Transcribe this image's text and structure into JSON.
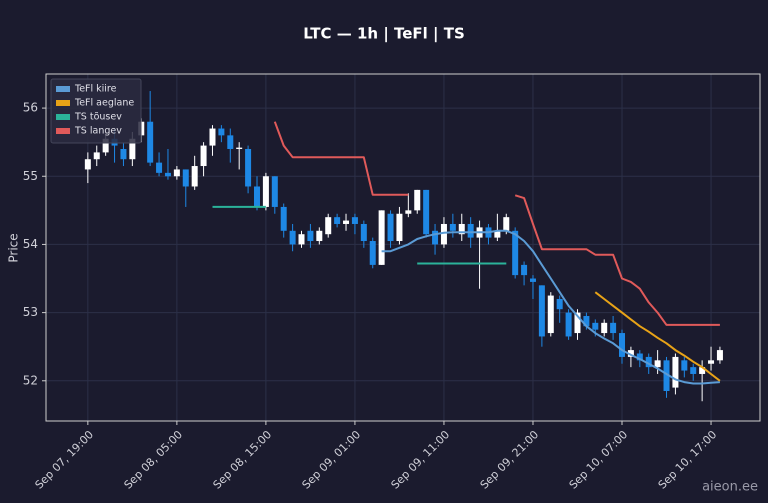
{
  "chart_data": {
    "type": "candlestick",
    "title": "LTC — 1h  |  TeFl  |  TS",
    "ylabel": "Price",
    "watermark": "aieon.ee",
    "x": [
      "Sep 07, 19:00",
      "Sep 07, 20:00",
      "Sep 07, 21:00",
      "Sep 07, 22:00",
      "Sep 07, 23:00",
      "Sep 08, 00:00",
      "Sep 08, 01:00",
      "Sep 08, 02:00",
      "Sep 08, 03:00",
      "Sep 08, 04:00",
      "Sep 08, 05:00",
      "Sep 08, 06:00",
      "Sep 08, 07:00",
      "Sep 08, 08:00",
      "Sep 08, 09:00",
      "Sep 08, 10:00",
      "Sep 08, 11:00",
      "Sep 08, 12:00",
      "Sep 08, 13:00",
      "Sep 08, 14:00",
      "Sep 08, 15:00",
      "Sep 08, 16:00",
      "Sep 08, 17:00",
      "Sep 08, 18:00",
      "Sep 08, 19:00",
      "Sep 08, 20:00",
      "Sep 08, 21:00",
      "Sep 08, 22:00",
      "Sep 08, 23:00",
      "Sep 09, 00:00",
      "Sep 09, 01:00",
      "Sep 09, 02:00",
      "Sep 09, 03:00",
      "Sep 09, 04:00",
      "Sep 09, 05:00",
      "Sep 09, 06:00",
      "Sep 09, 07:00",
      "Sep 09, 08:00",
      "Sep 09, 09:00",
      "Sep 09, 10:00",
      "Sep 09, 11:00",
      "Sep 09, 12:00",
      "Sep 09, 13:00",
      "Sep 09, 14:00",
      "Sep 09, 15:00",
      "Sep 09, 16:00",
      "Sep 09, 17:00",
      "Sep 09, 18:00",
      "Sep 09, 19:00",
      "Sep 09, 20:00",
      "Sep 09, 21:00",
      "Sep 09, 22:00",
      "Sep 09, 23:00",
      "Sep 10, 00:00",
      "Sep 10, 01:00",
      "Sep 10, 02:00",
      "Sep 10, 03:00",
      "Sep 10, 04:00",
      "Sep 10, 05:00",
      "Sep 10, 06:00",
      "Sep 10, 07:00",
      "Sep 10, 08:00",
      "Sep 10, 09:00",
      "Sep 10, 10:00",
      "Sep 10, 11:00",
      "Sep 10, 12:00",
      "Sep 10, 13:00",
      "Sep 10, 14:00",
      "Sep 10, 15:00",
      "Sep 10, 16:00",
      "Sep 10, 17:00",
      "Sep 10, 18:00"
    ],
    "open": [
      55.1,
      55.25,
      55.35,
      55.55,
      55.4,
      55.25,
      55.6,
      55.8,
      55.2,
      55.05,
      55.0,
      55.1,
      54.85,
      55.15,
      55.45,
      55.7,
      55.6,
      55.4,
      55.4,
      54.85,
      54.55,
      55.0,
      54.55,
      54.2,
      54.0,
      54.2,
      54.05,
      54.15,
      54.4,
      54.3,
      54.4,
      54.3,
      54.05,
      53.7,
      54.45,
      54.05,
      54.45,
      54.5,
      54.8,
      54.2,
      54.0,
      54.3,
      54.15,
      54.3,
      54.1,
      54.25,
      54.1,
      54.2,
      54.2,
      53.7,
      53.5,
      53.4,
      52.7,
      53.2,
      53.0,
      52.7,
      52.95,
      52.85,
      52.7,
      52.85,
      52.7,
      52.35,
      52.4,
      52.35,
      52.2,
      52.3,
      51.9,
      52.3,
      52.2,
      52.1,
      52.25,
      52.3
    ],
    "high": [
      55.35,
      55.45,
      55.65,
      55.7,
      55.5,
      55.65,
      55.85,
      56.25,
      55.35,
      55.4,
      55.15,
      55.1,
      55.3,
      55.5,
      55.75,
      55.75,
      55.7,
      55.5,
      55.45,
      55.0,
      55.05,
      55.0,
      54.6,
      54.3,
      54.2,
      54.3,
      54.25,
      54.45,
      54.45,
      54.45,
      54.45,
      54.35,
      54.1,
      54.5,
      54.5,
      54.55,
      54.75,
      54.8,
      54.8,
      54.3,
      54.4,
      54.45,
      54.45,
      54.4,
      54.35,
      54.3,
      54.45,
      54.45,
      54.25,
      53.75,
      53.55,
      53.4,
      53.3,
      53.25,
      53.05,
      53.05,
      53.0,
      52.9,
      52.9,
      52.95,
      52.75,
      52.5,
      52.45,
      52.4,
      52.45,
      52.35,
      52.4,
      52.35,
      52.25,
      52.3,
      52.5,
      52.5
    ],
    "low": [
      54.9,
      55.15,
      55.3,
      55.2,
      55.15,
      55.15,
      55.5,
      55.15,
      55.0,
      54.95,
      54.95,
      54.55,
      54.8,
      55.0,
      55.3,
      55.5,
      55.2,
      55.1,
      54.75,
      54.5,
      54.5,
      54.45,
      54.1,
      53.9,
      53.95,
      53.95,
      54.0,
      54.1,
      54.25,
      54.2,
      54.15,
      53.95,
      53.65,
      53.7,
      53.95,
      54.0,
      54.4,
      54.45,
      54.1,
      53.85,
      53.95,
      54.1,
      54.05,
      53.95,
      53.35,
      54.0,
      54.05,
      54.15,
      53.5,
      53.4,
      53.2,
      52.5,
      52.65,
      52.85,
      52.6,
      52.6,
      52.75,
      52.65,
      52.65,
      52.6,
      52.25,
      52.2,
      52.2,
      52.1,
      52.1,
      51.75,
      51.8,
      52.05,
      52.0,
      51.7,
      52.15,
      52.25
    ],
    "close": [
      55.25,
      55.35,
      55.55,
      55.45,
      55.25,
      55.55,
      55.8,
      55.2,
      55.05,
      55.0,
      55.1,
      54.85,
      55.15,
      55.45,
      55.7,
      55.6,
      55.4,
      55.42,
      54.85,
      54.55,
      55.0,
      54.55,
      54.2,
      54.0,
      54.15,
      54.05,
      54.2,
      54.4,
      54.3,
      54.35,
      54.3,
      54.05,
      53.7,
      54.5,
      54.05,
      54.45,
      54.5,
      54.8,
      54.15,
      54.0,
      54.3,
      54.2,
      54.3,
      54.1,
      54.25,
      54.1,
      54.2,
      54.4,
      53.55,
      53.55,
      53.45,
      52.65,
      53.25,
      53.05,
      52.65,
      53.0,
      52.8,
      52.75,
      52.85,
      52.7,
      52.35,
      52.45,
      52.3,
      52.2,
      52.3,
      51.85,
      52.35,
      52.15,
      52.1,
      52.2,
      52.3,
      52.45
    ],
    "up_color": "#ffffff",
    "down_color": "#1e88e5",
    "overlays": [
      {
        "name": "TeFl kiire",
        "color": "#5b9bd5",
        "values": [
          null,
          null,
          null,
          null,
          null,
          null,
          null,
          null,
          null,
          null,
          null,
          null,
          null,
          null,
          null,
          null,
          null,
          null,
          null,
          null,
          null,
          null,
          null,
          null,
          null,
          null,
          null,
          null,
          null,
          null,
          null,
          null,
          null,
          53.9,
          53.9,
          53.95,
          54.0,
          54.08,
          54.12,
          54.15,
          54.17,
          54.18,
          54.18,
          54.18,
          54.18,
          54.18,
          54.2,
          54.2,
          54.15,
          54.05,
          53.9,
          53.7,
          53.5,
          53.3,
          53.1,
          52.95,
          52.8,
          52.7,
          52.62,
          52.55,
          52.45,
          52.38,
          52.32,
          52.25,
          52.18,
          52.1,
          52.02,
          51.98,
          51.96,
          51.96,
          51.97,
          51.98
        ]
      },
      {
        "name": "TeFl aeglane",
        "color": "#e8a317",
        "values": [
          null,
          null,
          null,
          null,
          null,
          null,
          null,
          null,
          null,
          null,
          null,
          null,
          null,
          null,
          null,
          null,
          null,
          null,
          null,
          null,
          null,
          null,
          null,
          null,
          null,
          null,
          null,
          null,
          null,
          null,
          null,
          null,
          null,
          null,
          null,
          null,
          null,
          null,
          null,
          null,
          null,
          null,
          null,
          null,
          null,
          null,
          null,
          null,
          null,
          null,
          null,
          null,
          null,
          null,
          null,
          null,
          null,
          53.3,
          53.2,
          53.1,
          53.0,
          52.9,
          52.8,
          52.72,
          52.63,
          52.55,
          52.45,
          52.37,
          52.28,
          52.2,
          52.1,
          52.0
        ]
      },
      {
        "name": "TS tõusev",
        "color": "#2bb39a",
        "values": [
          null,
          null,
          null,
          null,
          null,
          null,
          null,
          null,
          null,
          null,
          null,
          null,
          null,
          null,
          54.55,
          54.55,
          54.55,
          54.55,
          54.55,
          54.55,
          54.55,
          null,
          null,
          null,
          null,
          null,
          null,
          null,
          null,
          null,
          null,
          null,
          null,
          null,
          null,
          null,
          null,
          53.72,
          53.72,
          53.72,
          53.72,
          53.72,
          53.72,
          53.72,
          53.72,
          53.72,
          53.72,
          53.72,
          null,
          null,
          null,
          null,
          null,
          null,
          null,
          null,
          null,
          null,
          null,
          null,
          null,
          null,
          null,
          null,
          null,
          null,
          null,
          null,
          null,
          null,
          null,
          null
        ]
      },
      {
        "name": "TS langev",
        "color": "#e05a5a",
        "values": [
          null,
          null,
          null,
          null,
          null,
          null,
          null,
          null,
          null,
          null,
          null,
          null,
          null,
          null,
          null,
          null,
          null,
          null,
          null,
          null,
          null,
          55.8,
          55.45,
          55.28,
          55.28,
          55.28,
          55.28,
          55.28,
          55.28,
          55.28,
          55.28,
          55.28,
          54.73,
          54.73,
          54.73,
          54.73,
          54.73,
          null,
          null,
          null,
          null,
          null,
          null,
          null,
          null,
          null,
          null,
          null,
          54.72,
          54.68,
          54.3,
          53.93,
          53.93,
          53.93,
          53.93,
          53.93,
          53.93,
          53.85,
          53.85,
          53.85,
          53.5,
          53.45,
          53.35,
          53.15,
          53.0,
          52.82,
          52.82,
          52.82,
          52.82,
          52.82,
          52.82,
          52.82
        ]
      }
    ],
    "ylim": [
      51.41,
      56.5
    ],
    "yticks": [
      52,
      53,
      54,
      55,
      56
    ],
    "xticks": [
      "Sep 07, 19:00",
      "Sep 08, 05:00",
      "Sep 08, 15:00",
      "Sep 09, 01:00",
      "Sep 09, 11:00",
      "Sep 09, 21:00",
      "Sep 10, 07:00",
      "Sep 10, 17:00"
    ],
    "grid": true,
    "legend": "upper left"
  }
}
